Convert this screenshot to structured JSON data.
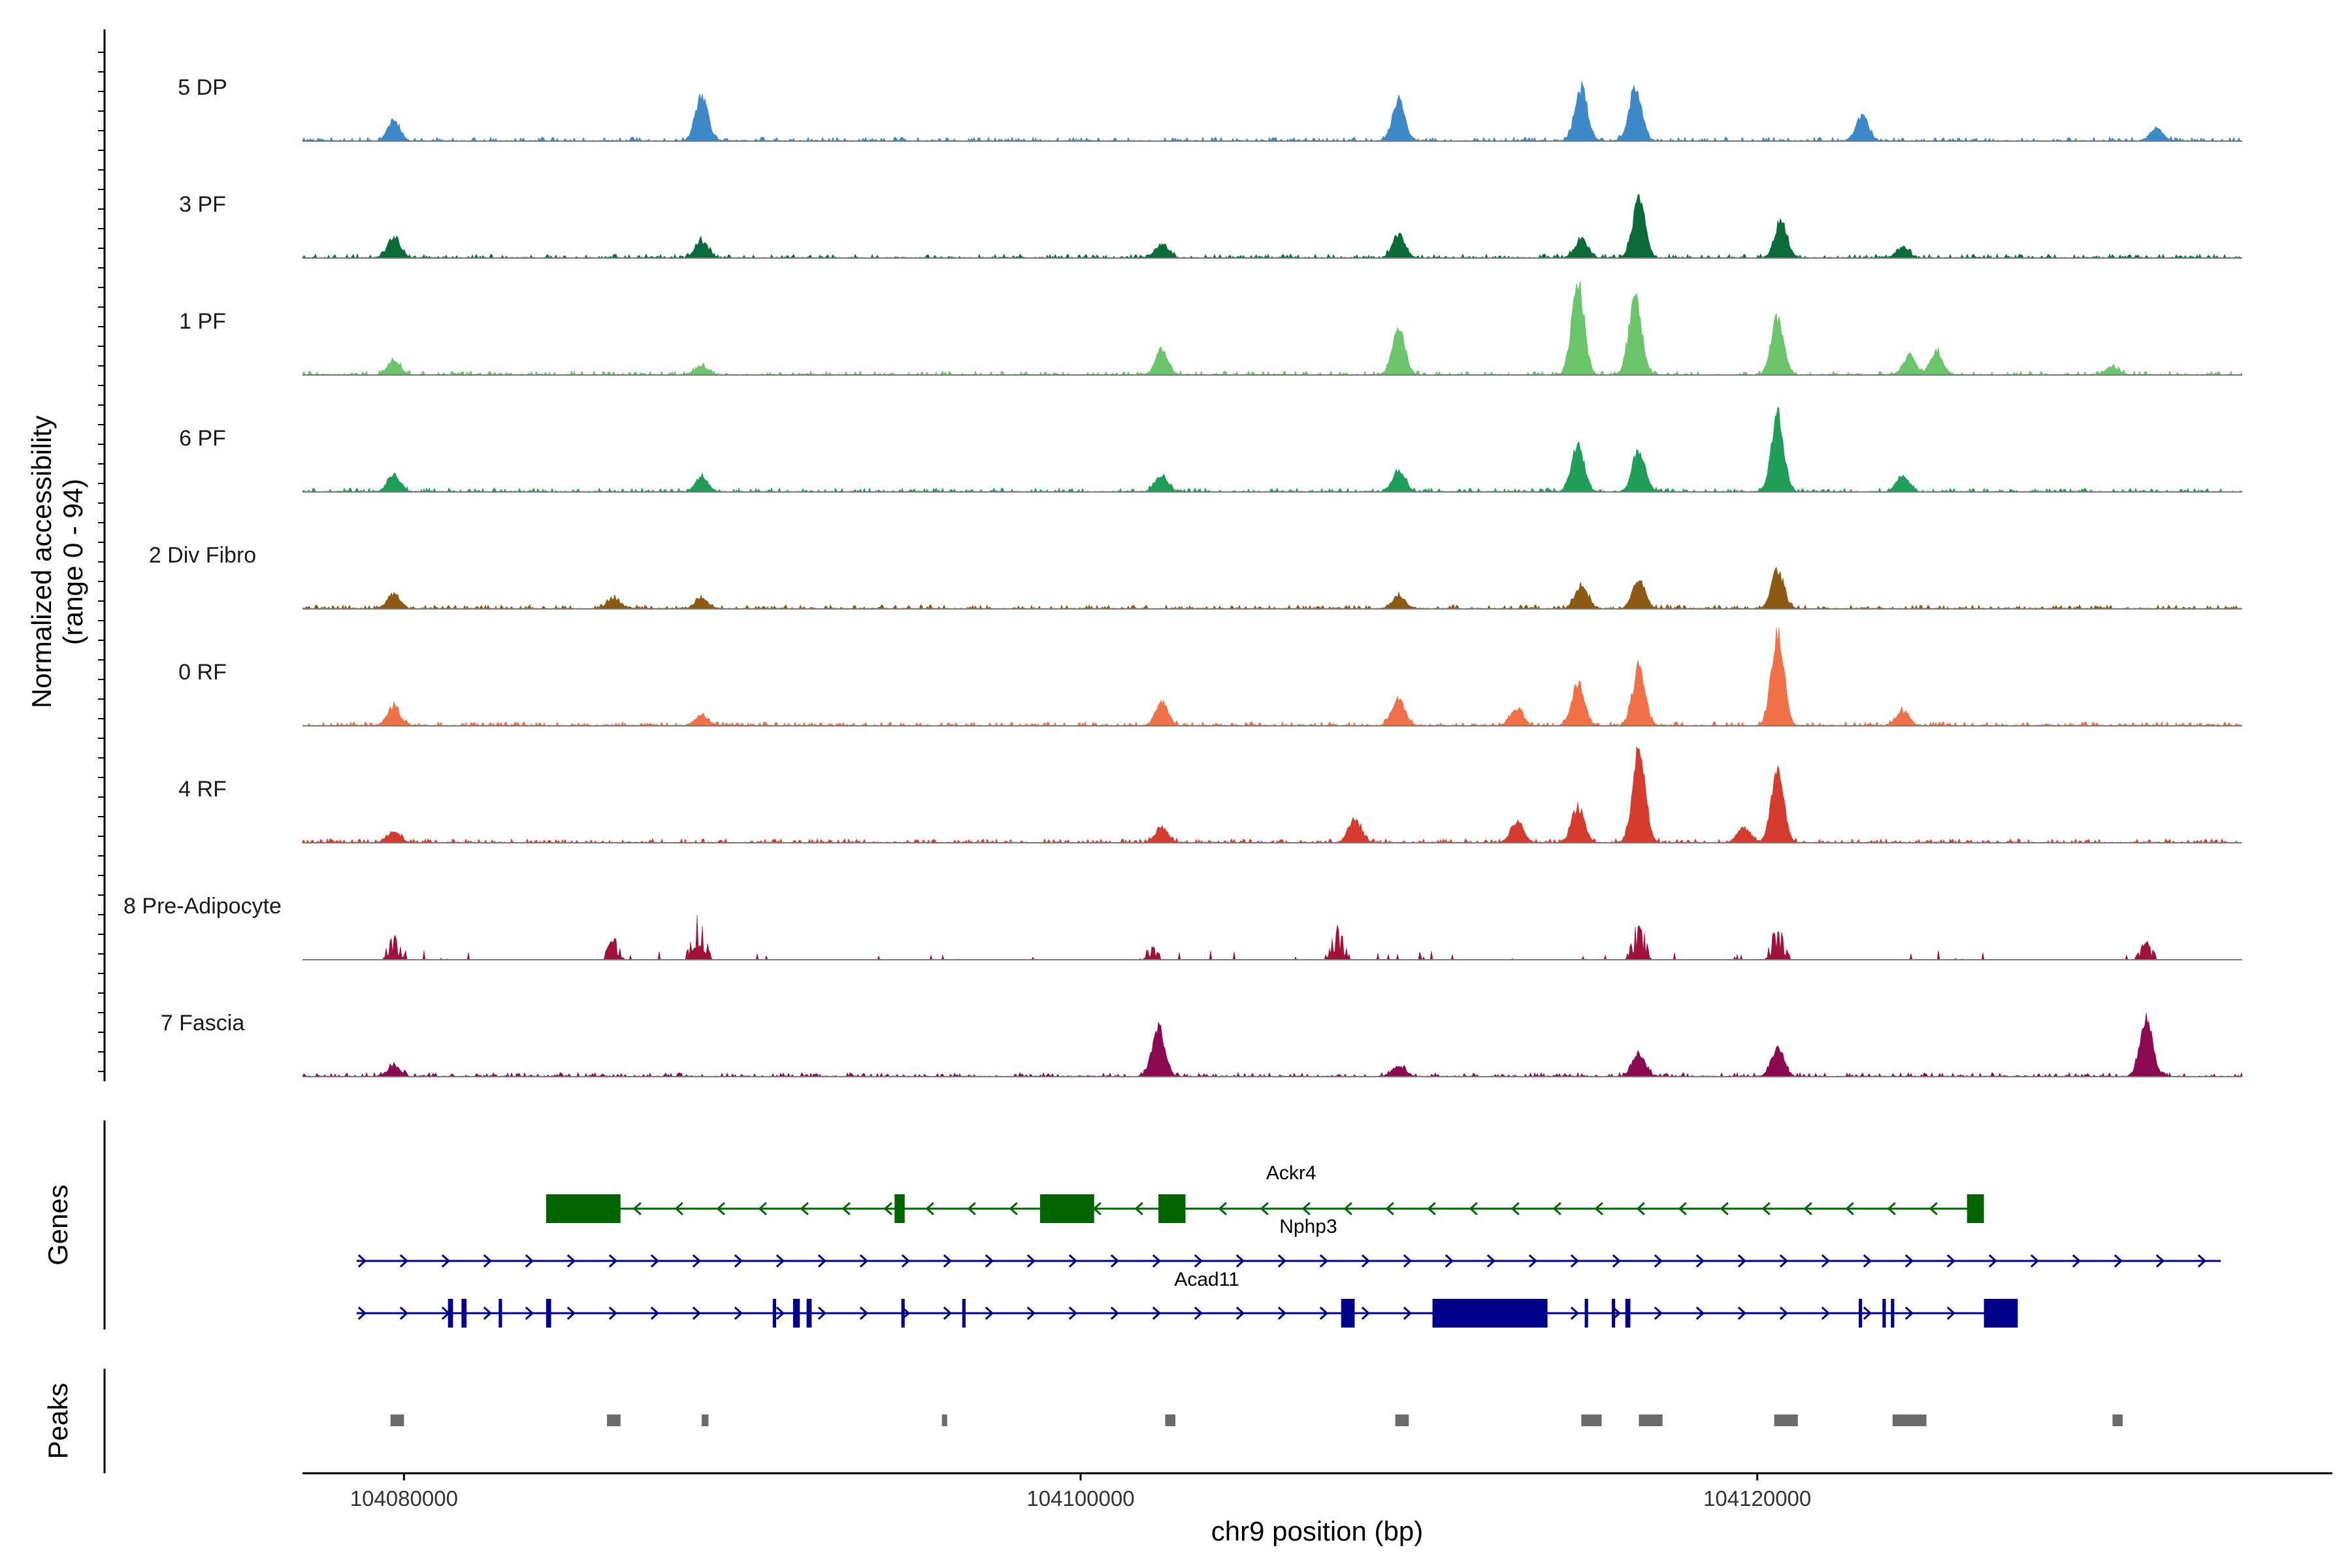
{
  "chart_data": {
    "type": "coverage-track",
    "ylabel": "Normalized accessibility\n(range 0 - 94)",
    "xlabel": "chr9 position (bp)",
    "xlim": [
      104077000,
      104137000
    ],
    "ylim": [
      0,
      94
    ],
    "x_ticks": [
      104080000,
      104100000,
      104120000
    ],
    "tracks": [
      {
        "name": "5 DP",
        "color": "#3C88C8",
        "peaks": [
          [
            104079700,
            18
          ],
          [
            104088800,
            42
          ],
          [
            104109400,
            38
          ],
          [
            104114800,
            50
          ],
          [
            104116400,
            52
          ],
          [
            104123100,
            24
          ],
          [
            104131800,
            12
          ]
        ]
      },
      {
        "name": "3 PF",
        "color": "#0B6B39",
        "peaks": [
          [
            104079700,
            20
          ],
          [
            104088800,
            16
          ],
          [
            104102400,
            14
          ],
          [
            104109400,
            22
          ],
          [
            104114800,
            18
          ],
          [
            104116500,
            55
          ],
          [
            104120700,
            34
          ],
          [
            104124300,
            10
          ]
        ]
      },
      {
        "name": "1 PF",
        "color": "#6BC56A",
        "peaks": [
          [
            104079700,
            14
          ],
          [
            104088800,
            8
          ],
          [
            104102400,
            24
          ],
          [
            104109400,
            44
          ],
          [
            104114700,
            86
          ],
          [
            104116400,
            78
          ],
          [
            104120600,
            55
          ],
          [
            104124500,
            18
          ],
          [
            104125300,
            22
          ],
          [
            104130500,
            8
          ]
        ]
      },
      {
        "name": "6 PF",
        "color": "#1F9E5A",
        "peaks": [
          [
            104079700,
            16
          ],
          [
            104088800,
            14
          ],
          [
            104102400,
            16
          ],
          [
            104109400,
            20
          ],
          [
            104114700,
            44
          ],
          [
            104116500,
            40
          ],
          [
            104120600,
            70
          ],
          [
            104124300,
            16
          ]
        ]
      },
      {
        "name": "2 Div Fibro",
        "color": "#8E5A13",
        "peaks": [
          [
            104079700,
            14
          ],
          [
            104086200,
            10
          ],
          [
            104088800,
            10
          ],
          [
            104109400,
            12
          ],
          [
            104114800,
            22
          ],
          [
            104116500,
            28
          ],
          [
            104120600,
            36
          ]
        ]
      },
      {
        "name": "0 RF",
        "color": "#F07048",
        "peaks": [
          [
            104079700,
            18
          ],
          [
            104088800,
            10
          ],
          [
            104102400,
            22
          ],
          [
            104109400,
            26
          ],
          [
            104112900,
            16
          ],
          [
            104114700,
            40
          ],
          [
            104116500,
            55
          ],
          [
            104120600,
            90
          ],
          [
            104124300,
            14
          ]
        ]
      },
      {
        "name": "4 RF",
        "color": "#D63C2E",
        "peaks": [
          [
            104079700,
            10
          ],
          [
            104102400,
            14
          ],
          [
            104108100,
            22
          ],
          [
            104112900,
            20
          ],
          [
            104114700,
            34
          ],
          [
            104116500,
            88
          ],
          [
            104119600,
            14
          ],
          [
            104120600,
            68
          ]
        ]
      },
      {
        "name": "8 Pre-Adipocyte",
        "color": "#A0123A",
        "peaks": [
          [
            104079700,
            22
          ],
          [
            104086200,
            20
          ],
          [
            104088700,
            42
          ],
          [
            104102100,
            12
          ],
          [
            104107600,
            30
          ],
          [
            104116500,
            36
          ],
          [
            104120600,
            30
          ],
          [
            104131500,
            16
          ]
        ]
      },
      {
        "name": "7 Fascia",
        "color": "#8B0A52",
        "peaks": [
          [
            104079700,
            10
          ],
          [
            104102300,
            48
          ],
          [
            104109400,
            10
          ],
          [
            104116500,
            22
          ],
          [
            104120600,
            26
          ],
          [
            104131500,
            56
          ]
        ]
      }
    ],
    "gene_panel_title": "Genes",
    "genes": [
      {
        "name": "Ackr4",
        "color": "#006400",
        "strand": "-",
        "start": 104084200,
        "end": 104126700,
        "exons": [
          [
            104084200,
            104086400
          ],
          [
            104094500,
            104094800
          ],
          [
            104098800,
            104100400
          ],
          [
            104102300,
            104103100
          ],
          [
            104126200,
            104126700
          ]
        ]
      },
      {
        "name": "Nphp3",
        "color": "#00008B",
        "strand": "+",
        "start": 104078600,
        "end": 104133700,
        "exons": []
      },
      {
        "name": "Acad11",
        "color": "#00008B",
        "strand": "+",
        "start": 104078600,
        "end": 104127700,
        "exons": [
          [
            104081300,
            104081450
          ],
          [
            104081700,
            104081850
          ],
          [
            104082800,
            104082900
          ],
          [
            104084200,
            104084350
          ],
          [
            104090900,
            104091000
          ],
          [
            104091500,
            104091700
          ],
          [
            104091900,
            104092050
          ],
          [
            104094700,
            104094800
          ],
          [
            104096500,
            104096600
          ],
          [
            104107700,
            104108100
          ],
          [
            104110400,
            104113800
          ],
          [
            104114900,
            104115000
          ],
          [
            104115700,
            104115800
          ],
          [
            104116100,
            104116250
          ],
          [
            104123000,
            104123100
          ],
          [
            104123700,
            104123800
          ],
          [
            104123950,
            104124050
          ],
          [
            104126700,
            104127700
          ]
        ]
      }
    ],
    "peaks_panel_title": "Peaks",
    "peak_regions": [
      [
        104079600,
        104080000
      ],
      [
        104086000,
        104086400
      ],
      [
        104088800,
        104089000
      ],
      [
        104095900,
        104096000
      ],
      [
        104102500,
        104102800
      ],
      [
        104109300,
        104109700
      ],
      [
        104114800,
        104115400
      ],
      [
        104116500,
        104117200
      ],
      [
        104120500,
        104121200
      ],
      [
        104124000,
        104125000
      ],
      [
        104130500,
        104130800
      ]
    ]
  }
}
